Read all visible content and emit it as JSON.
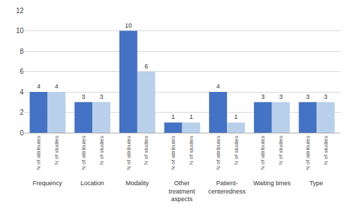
{
  "chart_data": {
    "type": "bar",
    "categories": [
      "Frequency",
      "Location",
      "Modality",
      "Other\ntreatment\naspects",
      "Patient-\ncenteredness",
      "Waiting times",
      "Type"
    ],
    "series": [
      {
        "name": "N of attributes",
        "color": "#4472C4",
        "values": [
          4,
          3,
          10,
          1,
          4,
          3,
          3
        ]
      },
      {
        "name": "N of studies",
        "color": "#B8D0EA",
        "values": [
          4,
          3,
          6,
          1,
          1,
          3,
          3
        ]
      }
    ],
    "ylim": [
      0,
      12
    ],
    "yticks": [
      0,
      2,
      4,
      6,
      8,
      10,
      12
    ],
    "grid": true,
    "data_labels": true
  }
}
